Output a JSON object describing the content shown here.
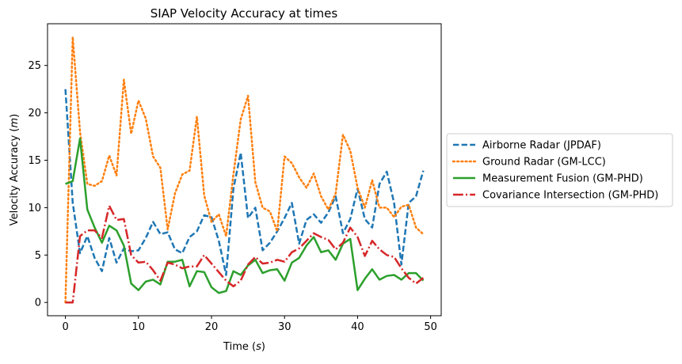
{
  "chart_data": {
    "type": "line",
    "title": "SIAP Velocity Accuracy at times",
    "xlabel_prefix": "Time (",
    "xlabel_unit": "s",
    "xlabel_suffix": ")",
    "ylabel_prefix": "Velocity Accuracy (",
    "ylabel_unit": "m",
    "ylabel_suffix": ")",
    "xlim": [
      -2.45,
      51.45
    ],
    "ylim": [
      -1.4,
      29.4
    ],
    "xticks": [
      0,
      10,
      20,
      30,
      40,
      50
    ],
    "yticks": [
      0,
      5,
      10,
      15,
      20,
      25
    ],
    "grid": false,
    "legend_position": "outside-right",
    "x": [
      0,
      1,
      2,
      3,
      4,
      5,
      6,
      7,
      8,
      9,
      10,
      11,
      12,
      13,
      14,
      15,
      16,
      17,
      18,
      19,
      20,
      21,
      22,
      23,
      24,
      25,
      26,
      27,
      28,
      29,
      30,
      31,
      32,
      33,
      34,
      35,
      36,
      37,
      38,
      39,
      40,
      41,
      42,
      43,
      44,
      45,
      46,
      47,
      48,
      49
    ],
    "series": [
      {
        "name": "Airborne Radar (JPDAF)",
        "color": "#1f77b4",
        "dash": "dashed",
        "values": [
          22.5,
          10.5,
          5.2,
          7.0,
          4.7,
          3.3,
          6.8,
          4.2,
          5.7,
          5.4,
          5.5,
          6.8,
          8.5,
          7.2,
          7.4,
          5.6,
          5.2,
          6.9,
          7.5,
          9.2,
          9.0,
          6.5,
          2.9,
          12.0,
          15.8,
          8.9,
          10.0,
          5.5,
          6.3,
          7.5,
          8.9,
          10.5,
          6.2,
          8.7,
          9.3,
          8.4,
          9.5,
          11.2,
          7.3,
          8.8,
          12.0,
          8.8,
          7.9,
          12.5,
          13.8,
          10.5,
          4.0,
          10.5,
          11.2,
          13.9
        ]
      },
      {
        "name": "Ground Radar (GM-LCC)",
        "color": "#ff7f0e",
        "dash": "dotted",
        "values": [
          0.0,
          28.0,
          18.0,
          12.5,
          12.3,
          12.8,
          15.5,
          13.4,
          23.5,
          17.8,
          21.3,
          19.4,
          15.4,
          14.2,
          7.7,
          11.5,
          13.5,
          13.9,
          19.6,
          11.3,
          8.5,
          9.3,
          7.0,
          13.5,
          19.3,
          21.8,
          12.7,
          10.0,
          9.6,
          7.5,
          15.4,
          14.7,
          13.2,
          12.1,
          13.6,
          11.2,
          9.8,
          11.5,
          17.7,
          16.0,
          12.1,
          10.0,
          12.9,
          10.0,
          10.0,
          9.0,
          10.1,
          10.3,
          7.9,
          7.2
        ]
      },
      {
        "name": "Measurement Fusion (GM-PHD)",
        "color": "#2ca02c",
        "dash": "solid",
        "values": [
          12.5,
          12.8,
          17.3,
          9.8,
          7.9,
          6.3,
          8.1,
          7.6,
          6.0,
          2.0,
          1.3,
          2.2,
          2.4,
          1.9,
          4.3,
          4.3,
          4.5,
          1.7,
          3.3,
          3.2,
          1.6,
          1.0,
          1.2,
          3.3,
          2.9,
          3.9,
          4.5,
          3.1,
          3.4,
          3.5,
          2.3,
          4.2,
          4.7,
          6.0,
          6.9,
          5.3,
          5.5,
          4.5,
          6.2,
          6.7,
          1.3,
          2.5,
          3.5,
          2.4,
          2.8,
          2.9,
          2.4,
          3.1,
          3.1,
          2.3
        ]
      },
      {
        "name": "Covariance Intersection (GM-PHD)",
        "color": "#d62728",
        "dash": "dashdot",
        "values": [
          0.0,
          0.0,
          7.0,
          7.6,
          7.6,
          6.8,
          10.2,
          8.7,
          8.8,
          5.0,
          4.2,
          4.3,
          3.4,
          2.3,
          4.2,
          4.0,
          3.6,
          3.8,
          3.8,
          5.0,
          4.1,
          3.2,
          2.3,
          1.7,
          2.3,
          4.0,
          4.8,
          4.1,
          4.2,
          4.5,
          4.3,
          5.3,
          5.7,
          6.5,
          7.3,
          6.9,
          6.6,
          5.6,
          6.3,
          7.9,
          6.9,
          4.9,
          6.5,
          5.6,
          5.0,
          4.8,
          3.6,
          2.6,
          2.0,
          2.6
        ]
      }
    ]
  }
}
